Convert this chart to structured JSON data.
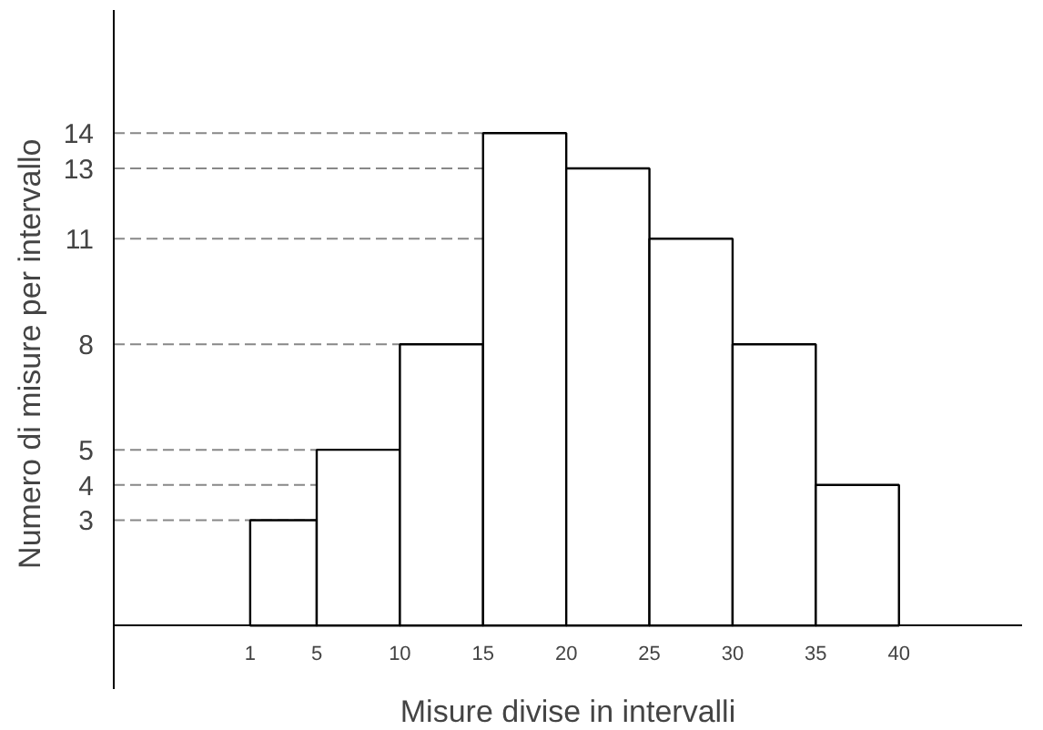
{
  "chart_data": {
    "type": "histogram",
    "xlabel": "Misure divise in intervalli",
    "ylabel": "Numero di  misure per intervallo",
    "bins": [
      1,
      5,
      10,
      15,
      20,
      25,
      30,
      35,
      40
    ],
    "values": [
      3,
      5,
      8,
      14,
      13,
      11,
      8,
      4
    ],
    "color": "#ffffff",
    "xlim": [
      -7.2,
      47.4
    ],
    "ylim": [
      -1.8,
      17.5
    ],
    "xticks": [
      1,
      5,
      10,
      15,
      20,
      25,
      30,
      35,
      40
    ],
    "yticks": [
      3,
      4,
      5,
      8,
      11,
      13,
      14
    ],
    "ref_lines": [
      {
        "axis": "y",
        "value": 3,
        "color": "#888888",
        "line_style": "dashed"
      },
      {
        "axis": "y",
        "value": 4,
        "color": "#888888",
        "line_style": "dashed"
      },
      {
        "axis": "y",
        "value": 5,
        "color": "#888888",
        "line_style": "dashed"
      },
      {
        "axis": "y",
        "value": 8,
        "color": "#888888",
        "line_style": "dashed"
      },
      {
        "axis": "y",
        "value": 11,
        "color": "#888888",
        "line_style": "dashed"
      },
      {
        "axis": "y",
        "value": 13,
        "color": "#888888",
        "line_style": "dashed"
      },
      {
        "axis": "y",
        "value": 14,
        "color": "#888888",
        "line_style": "dashed"
      }
    ]
  }
}
